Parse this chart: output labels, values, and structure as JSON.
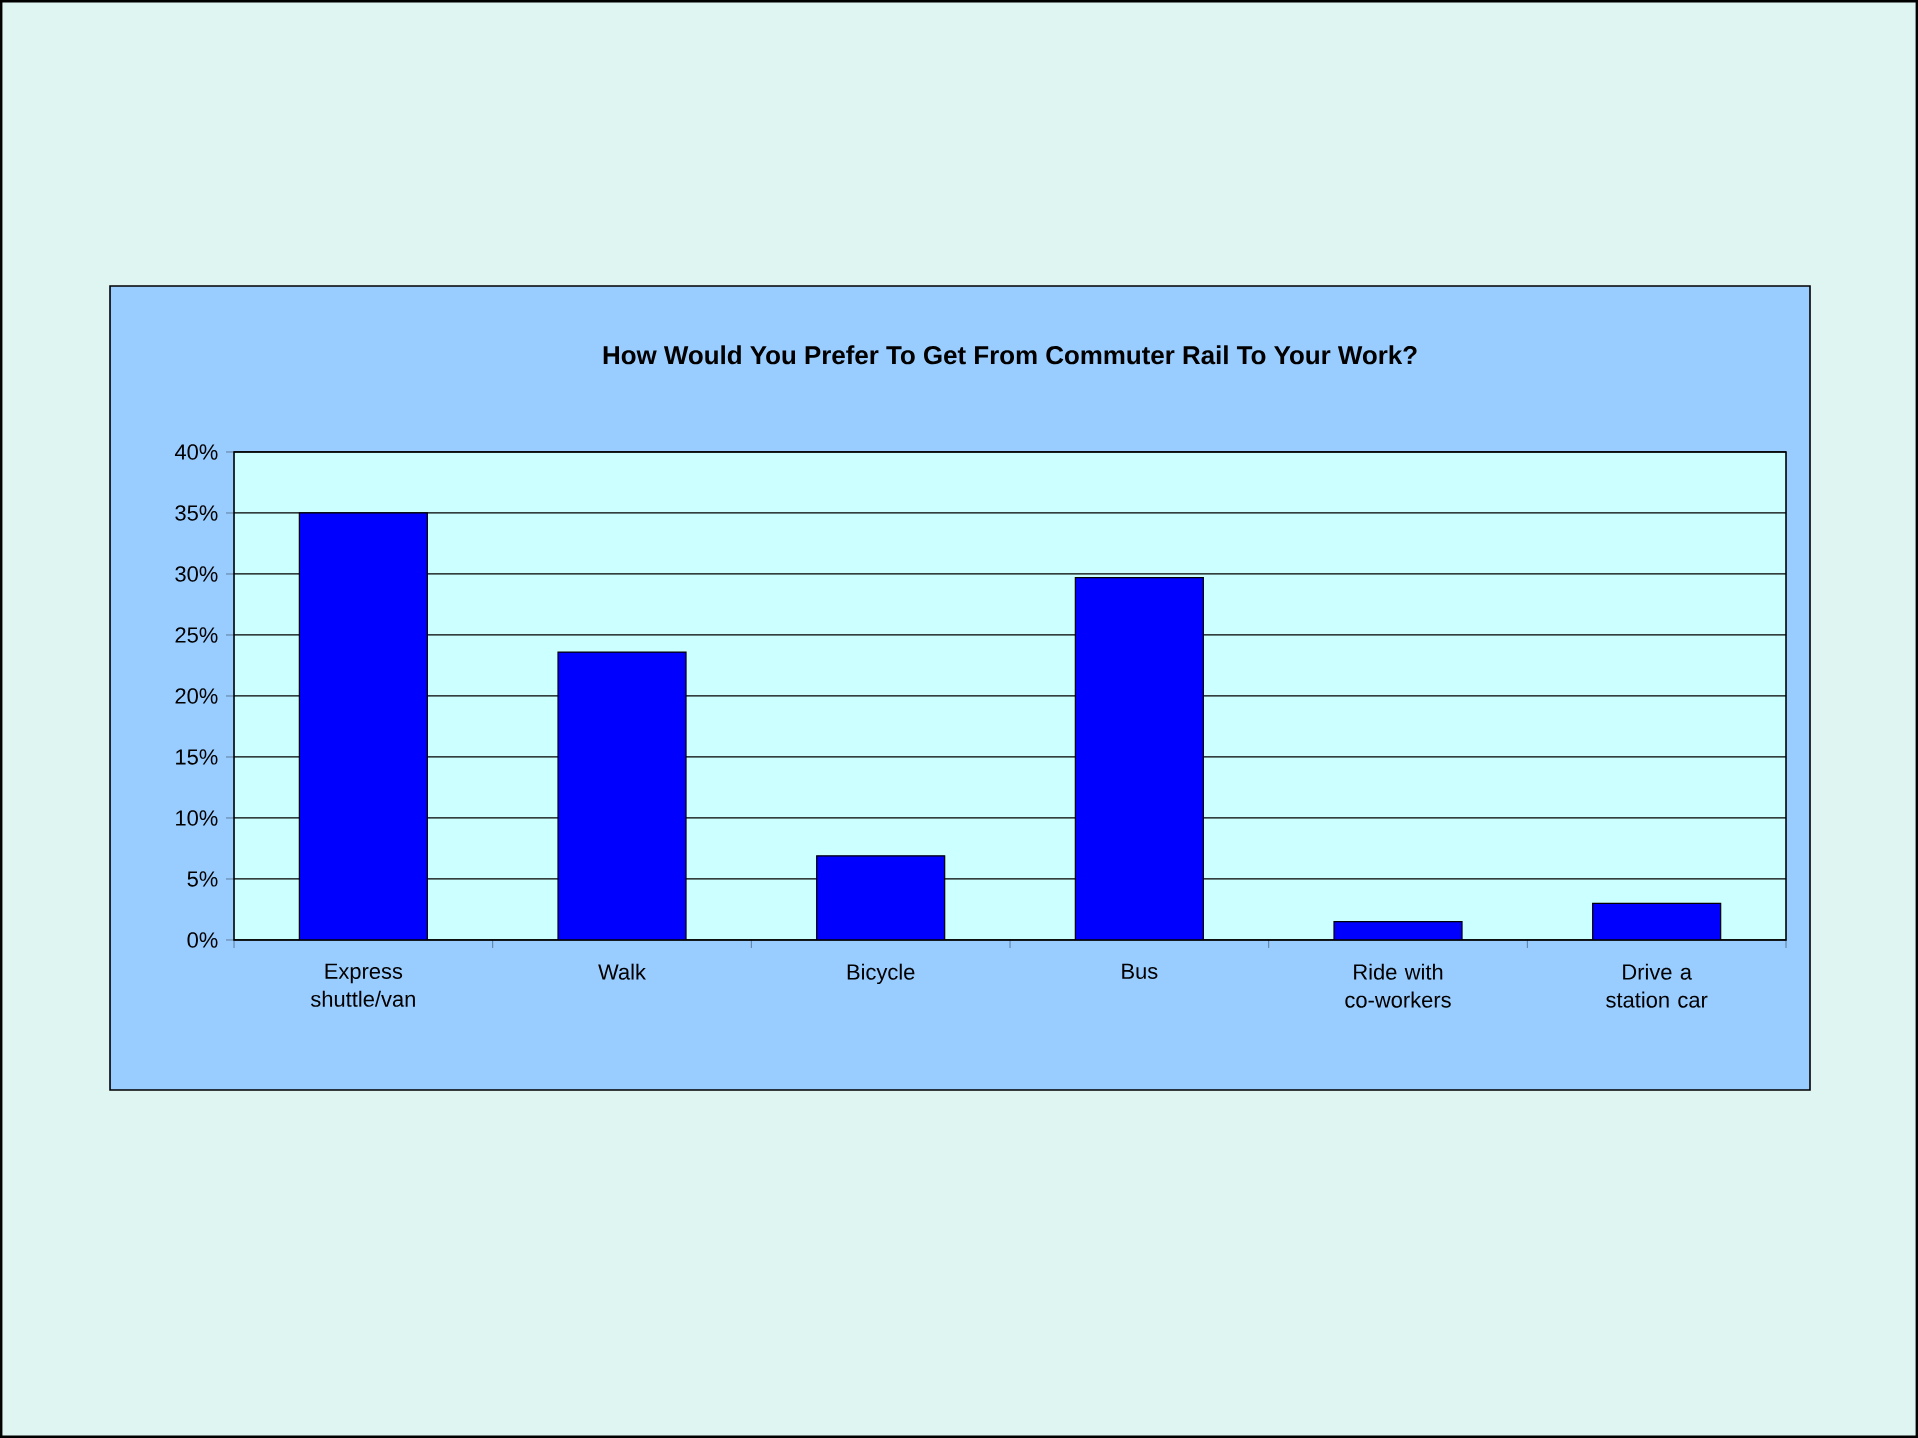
{
  "chart_data": {
    "type": "bar",
    "title": "How Would You Prefer To Get From Commuter Rail To Your Work?",
    "categories": [
      "Express shuttle/van",
      "Walk",
      "Bicycle",
      "Bus",
      "Ride with co-workers",
      "Drive a station car"
    ],
    "values": [
      35,
      23.6,
      6.9,
      29.7,
      1.5,
      3.0
    ],
    "color": "#0000ff",
    "ylim": [
      0,
      40
    ],
    "yticks": [
      {
        "value": 0,
        "label": "0%"
      },
      {
        "value": 5,
        "label": "5%"
      },
      {
        "value": 10,
        "label": "10%"
      },
      {
        "value": 15,
        "label": "15%"
      },
      {
        "value": 20,
        "label": "20%"
      },
      {
        "value": 25,
        "label": "25%"
      },
      {
        "value": 30,
        "label": "30%"
      },
      {
        "value": 35,
        "label": "35%"
      },
      {
        "value": 40,
        "label": "40%"
      }
    ],
    "grid": "y"
  }
}
